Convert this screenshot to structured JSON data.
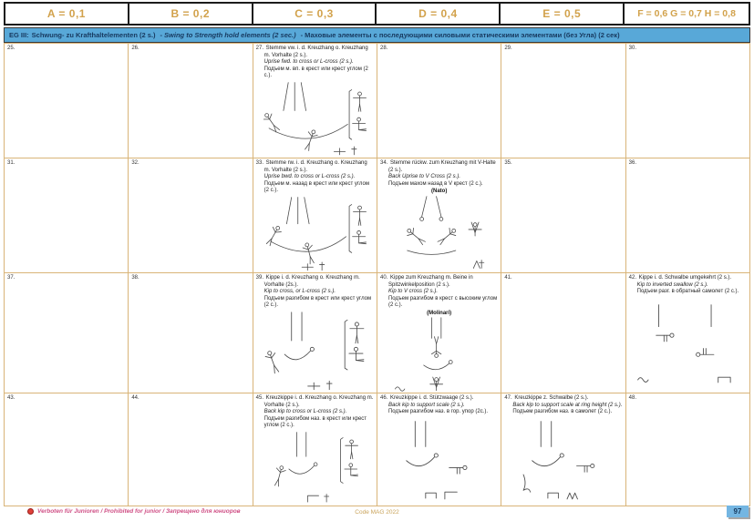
{
  "header": {
    "columns": [
      "A = 0,1",
      "B = 0,2",
      "C = 0,3",
      "D = 0,4",
      "E = 0,5",
      "F = 0,6 G = 0,7 H = 0,8"
    ]
  },
  "banner": {
    "label": "EG III:",
    "de": "Schwung- zu Krafthaltelementen (2 s.)",
    "en": "Swing to Strength hold elements (2 sec.)",
    "ru": "Маховые элементы с последующими силовыми статическими элементами (без Угла) (2 сек)",
    "sep": "-"
  },
  "cells": [
    {
      "num": "25."
    },
    {
      "num": "26."
    },
    {
      "num": "27.",
      "de": "Stemme vw. i. d. Kreuzhang o. Kreuzhang m. Vorhalte (2 s.).",
      "en": "Uprise fwd. to cross or L-cross (2 s.).",
      "ru": "Подъем м. вп. в крест или крест углом (2 с.).",
      "figure": "uprise-fwd-to-cross"
    },
    {
      "num": "28."
    },
    {
      "num": "29."
    },
    {
      "num": "30."
    },
    {
      "num": "31."
    },
    {
      "num": "32."
    },
    {
      "num": "33.",
      "de": "Stemme rw. i. d. Kreuzhang o. Kreuzhang m. Vorhalte (2 s.).",
      "en": "Uprise bwd. to cross or L-cross (2 s.).",
      "ru": "Подъем м. назад в крест или крест углом (2 с.).",
      "figure": "uprise-bwd-to-cross"
    },
    {
      "num": "34.",
      "de": "Stemme rückw. zum Kreuzhang mit V-Halte (2 s.).",
      "en": "Back Uprise to V Cross (2 s.).",
      "ru": "Подъем махом назад в V крест (2 с.).",
      "eponym": "(Nato)",
      "figure": "back-uprise-v-cross"
    },
    {
      "num": "35."
    },
    {
      "num": "36."
    },
    {
      "num": "37."
    },
    {
      "num": "38."
    },
    {
      "num": "39.",
      "de": "Kippe i. d. Kreuzhang o. Kreuzhang m. Vorhalte (2s.).",
      "en": "Kip to cross, or L-cross (2 s.).",
      "ru": "Подъем разгибом в крест или крест углом (2 с.).",
      "figure": "kip-to-cross"
    },
    {
      "num": "40.",
      "de": "Kippe zum Kreuzhang m. Beine in Spitzwinkelposition (2 s.).",
      "en": "Kip to V cross (2 s.).",
      "ru": "Подъем разгибом в крест с высоким углом (2 с.).",
      "eponym": "(Molinari)",
      "figure": "kip-to-v-cross"
    },
    {
      "num": "41."
    },
    {
      "num": "42.",
      "de": "Kippe i. d. Schwalbe umgekehrt (2 s.).",
      "en": "Kip to inverted swallow (2 s.).",
      "ru": "Подъем разг. в обратный самолет (2 с.).",
      "figure": "kip-inverted-swallow"
    },
    {
      "num": "43."
    },
    {
      "num": "44."
    },
    {
      "num": "45.",
      "de": "Kreuzkippe i. d. Kreuzhang o. Kreuzhang m. Vorhalte (2 s.).",
      "en": "Back kip to cross or L-cross (2 s.).",
      "ru": "Подъем разгибом наз. в крест или крест углом (2 с.).",
      "figure": "back-kip-to-cross"
    },
    {
      "num": "46.",
      "de": "Kreuzkippe i. d. Stützwaage (2 s.).",
      "en": "Back kip to support scale (2 s.).",
      "ru": "Подъем разгибом наз. в гор. упор (2с.).",
      "figure": "back-kip-support-scale"
    },
    {
      "num": "47.",
      "de": "Kreuzkippe z. Schwalbe (2 s.).",
      "en": "Back kip to support scale at ring height (2 s.).",
      "ru": "Подъем разгибом наз. в самолет (2 с.).",
      "figure": "back-kip-swallow"
    },
    {
      "num": "48."
    }
  ],
  "footer": {
    "restriction": "Verboten für Junioren / Prohibited for junior / Запрещено для юниоров",
    "code_ref": "Code MAG 2022",
    "page": "97"
  },
  "colors": {
    "accent_tan": "#d2a24c",
    "grid_line": "#d9b478",
    "banner_blue": "#58a8d8",
    "banner_text": "#17395f",
    "restriction_pink": "#cf4f85",
    "red_dot": "#e0413a",
    "badge_blue": "#74b6e2"
  }
}
